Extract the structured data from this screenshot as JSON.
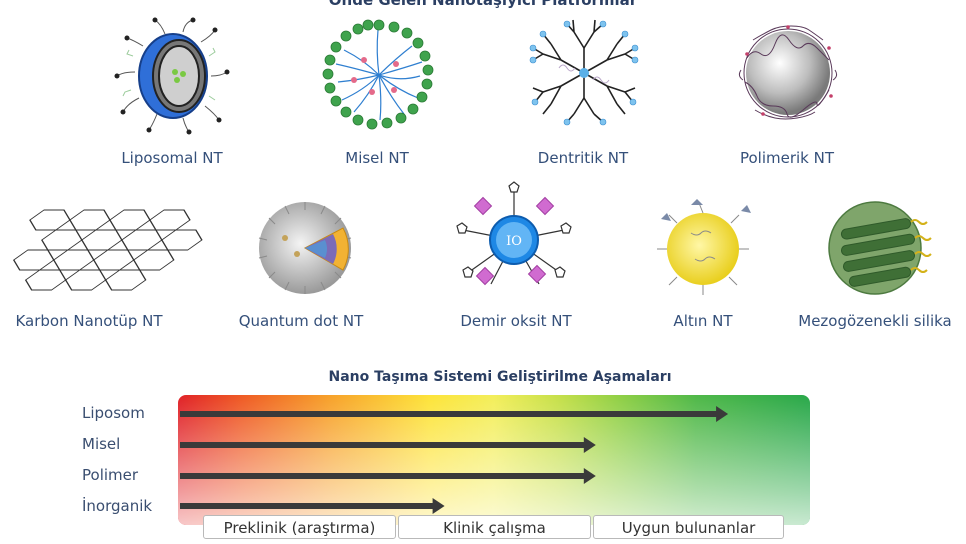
{
  "titles": {
    "platforms": "Önde Gelen Nanotaşıyıcı Platformlar",
    "stages": "Nano Taşıma Sistemi Geliştirilme Aşamaları"
  },
  "platforms": [
    {
      "label": "Liposomal NT",
      "icon": "liposome-icon"
    },
    {
      "label": "Misel NT",
      "icon": "micelle-icon"
    },
    {
      "label": "Dentritik NT",
      "icon": "dendrimer-icon"
    },
    {
      "label": "Polimerik NT",
      "icon": "polymeric-nanoparticle-icon"
    },
    {
      "label": "Karbon Nanotüp NT",
      "icon": "carbon-nanotube-icon"
    },
    {
      "label": "Quantum dot NT",
      "icon": "quantum-dot-icon"
    },
    {
      "label": "Demir oksit NT",
      "icon": "iron-oxide-icon"
    },
    {
      "label": "Altın NT",
      "icon": "gold-nanoparticle-icon"
    },
    {
      "label": "Mezogözenekli silika",
      "icon": "mesoporous-silica-icon"
    }
  ],
  "iron_oxide_core_text": "IO",
  "progress": {
    "rows": [
      {
        "name": "Liposom",
        "progress": 0.87
      },
      {
        "name": "Misel",
        "progress": 0.66
      },
      {
        "name": "Polimer",
        "progress": 0.66
      },
      {
        "name": "İnorganik",
        "progress": 0.42
      }
    ],
    "stages": [
      "Preklinik (araştırma)",
      "Klinik çalışma",
      "Uygun bulunanlar"
    ],
    "colors": {
      "start": "#e02127",
      "middle": "#fde43a",
      "end": "#29a84a",
      "arrow": "#3a3a3a"
    }
  }
}
